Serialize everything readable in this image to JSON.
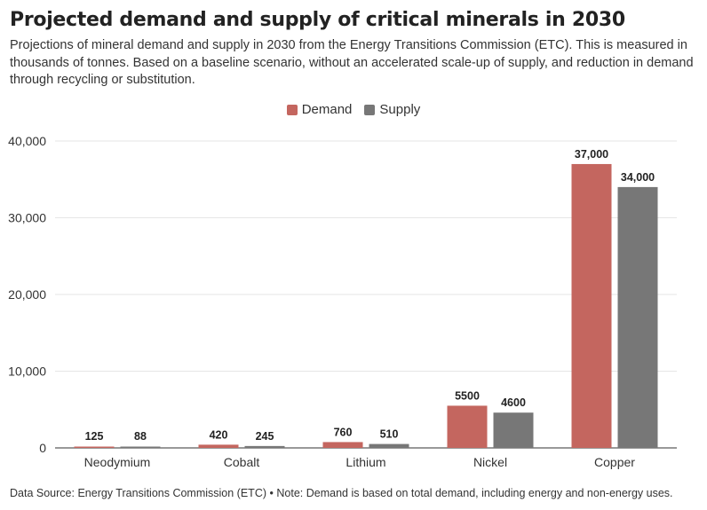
{
  "title": "Projected demand and supply of critical minerals in 2030",
  "subtitle": "Projections of mineral demand and supply in 2030 from the Energy Transitions Commission (ETC). This is measured in thousands of tonnes. Based on a baseline scenario, without an accelerated scale-up of supply, and reduction in demand through recycling or substitution.",
  "footer": {
    "source_label": "Data Source:",
    "source": "Energy Transitions Commission (ETC)",
    "separator": "•",
    "note_label": "Note:",
    "note": "Demand is based on total demand, including energy and non-energy uses."
  },
  "colors": {
    "demand": "#c4665f",
    "supply": "#777777",
    "grid": "#e6e6e6",
    "axis": "#333333"
  },
  "chart_data": {
    "type": "bar",
    "categories": [
      "Neodymium",
      "Cobalt",
      "Lithium",
      "Nickel",
      "Copper"
    ],
    "series": [
      {
        "name": "Demand",
        "values": [
          125,
          420,
          760,
          5500,
          37000
        ],
        "labels": [
          "125",
          "420",
          "760",
          "5500",
          "37,000"
        ]
      },
      {
        "name": "Supply",
        "values": [
          88,
          245,
          510,
          4600,
          34000
        ],
        "labels": [
          "88",
          "245",
          "510",
          "4600",
          "34,000"
        ]
      }
    ],
    "ylim": [
      0,
      40000
    ],
    "yticks": [
      0,
      10000,
      20000,
      30000,
      40000
    ],
    "ytick_labels": [
      "0",
      "10,000",
      "20,000",
      "30,000",
      "40,000"
    ],
    "grid": true,
    "legend_position": "top-center"
  }
}
